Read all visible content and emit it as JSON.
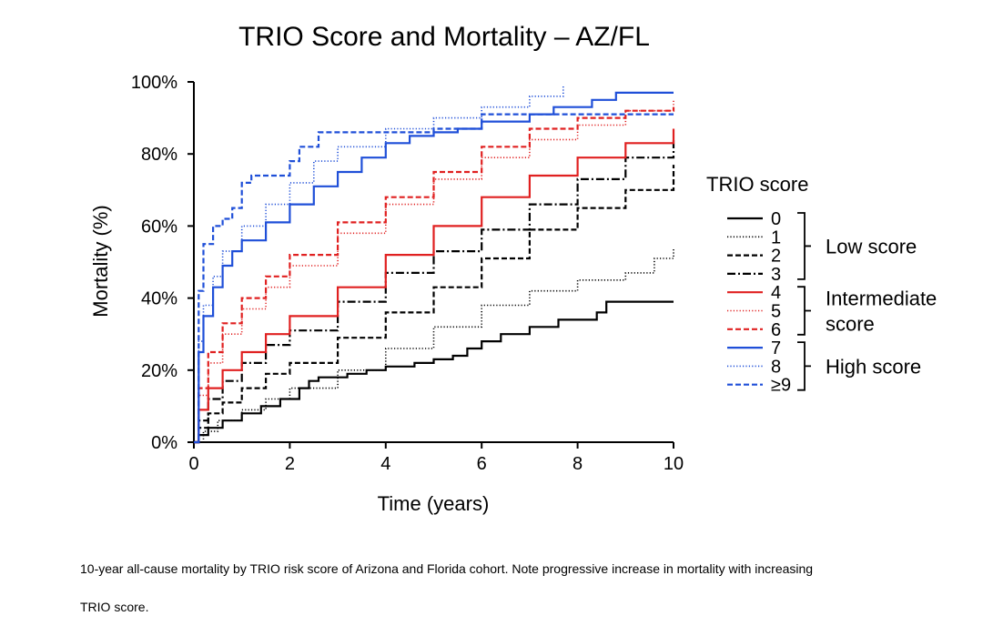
{
  "chart_data": {
    "type": "line",
    "title": "TRIO Score and Mortality – AZ/FL",
    "xlabel": "Time (years)",
    "ylabel": "Mortality (%)",
    "xlim": [
      0,
      10
    ],
    "ylim": [
      0,
      100
    ],
    "xticks": [
      0,
      2,
      4,
      6,
      8,
      10
    ],
    "xtick_labels": [
      "0",
      "2",
      "4",
      "6",
      "8",
      "10"
    ],
    "yticks": [
      0,
      20,
      40,
      60,
      80,
      100
    ],
    "ytick_labels": [
      "0%",
      "20%",
      "40%",
      "60%",
      "80%",
      "100%"
    ],
    "grid": false,
    "legend_title": "TRIO score",
    "legend_groups": [
      {
        "label_lines": [
          "Low score"
        ],
        "members": [
          "0",
          "1",
          "2",
          "3"
        ]
      },
      {
        "label_lines": [
          "Intermediate",
          "score"
        ],
        "members": [
          "4",
          "5",
          "6"
        ]
      },
      {
        "label_lines": [
          "High score"
        ],
        "members": [
          "7",
          "8",
          "≥9"
        ]
      }
    ],
    "series": [
      {
        "name": "0",
        "color": "#000000",
        "dash": "solid",
        "x": [
          0,
          0.1,
          0.3,
          0.6,
          1,
          1.4,
          1.8,
          2.2,
          2.4,
          2.6,
          2.8,
          3.2,
          3.6,
          4,
          4.6,
          5,
          5.4,
          5.7,
          6,
          6.4,
          7,
          7.6,
          8.4,
          8.6,
          10
        ],
        "y": [
          0,
          2,
          4,
          6,
          8,
          10,
          12,
          15,
          17,
          18,
          18,
          19,
          20,
          21,
          22,
          23,
          24,
          26,
          28,
          30,
          32,
          34,
          36,
          39,
          39
        ]
      },
      {
        "name": "1",
        "color": "#000000",
        "dash": "dotted",
        "x": [
          0,
          0.2,
          0.5,
          1,
          1.5,
          2,
          3,
          4,
          5,
          6,
          7,
          8,
          9,
          9.6,
          10
        ],
        "y": [
          0,
          3,
          6,
          9,
          12,
          15,
          20,
          26,
          32,
          38,
          42,
          45,
          47,
          51,
          54
        ]
      },
      {
        "name": "2",
        "color": "#000000",
        "dash": "dashed",
        "x": [
          0,
          0.1,
          0.3,
          0.6,
          1,
          1.5,
          2,
          3,
          4,
          5,
          6,
          7,
          8,
          9,
          10
        ],
        "y": [
          0,
          4,
          8,
          11,
          15,
          19,
          22,
          29,
          36,
          43,
          51,
          59,
          65,
          70,
          77
        ]
      },
      {
        "name": "3",
        "color": "#000000",
        "dash": "dashdot",
        "x": [
          0,
          0.1,
          0.3,
          0.6,
          1,
          1.5,
          2,
          3,
          4,
          5,
          6,
          7,
          8,
          9,
          10
        ],
        "y": [
          0,
          6,
          12,
          17,
          22,
          27,
          31,
          39,
          47,
          53,
          59,
          66,
          73,
          79,
          84
        ]
      },
      {
        "name": "4",
        "color": "#e02020",
        "dash": "solid",
        "x": [
          0,
          0.1,
          0.3,
          0.6,
          1,
          1.5,
          2,
          3,
          4,
          5,
          6,
          7,
          8,
          9,
          10
        ],
        "y": [
          0,
          9,
          15,
          20,
          25,
          30,
          35,
          43,
          52,
          60,
          68,
          74,
          79,
          83,
          87
        ]
      },
      {
        "name": "5",
        "color": "#e02020",
        "dash": "dotted",
        "x": [
          0,
          0.1,
          0.3,
          0.6,
          1,
          1.5,
          2,
          3,
          4,
          5,
          6,
          7,
          8,
          9,
          10
        ],
        "y": [
          0,
          13,
          22,
          30,
          37,
          43,
          49,
          58,
          66,
          73,
          79,
          84,
          88,
          92,
          95
        ]
      },
      {
        "name": "6",
        "color": "#e02020",
        "dash": "dashed",
        "x": [
          0,
          0.1,
          0.3,
          0.6,
          1,
          1.5,
          2,
          3,
          4,
          5,
          6,
          7,
          8,
          9,
          10
        ],
        "y": [
          0,
          15,
          25,
          33,
          40,
          46,
          52,
          61,
          68,
          75,
          82,
          87,
          90,
          92,
          93
        ]
      },
      {
        "name": "7",
        "color": "#1f4fd8",
        "dash": "solid",
        "x": [
          0,
          0.1,
          0.2,
          0.4,
          0.6,
          0.8,
          1,
          1.5,
          2,
          2.5,
          3,
          3.5,
          4,
          4.5,
          5,
          5.5,
          6,
          7,
          7.5,
          8.3,
          8.8,
          10
        ],
        "y": [
          0,
          25,
          35,
          43,
          49,
          53,
          56,
          61,
          66,
          71,
          75,
          79,
          83,
          85,
          86,
          87,
          89,
          91,
          93,
          95,
          97,
          97
        ]
      },
      {
        "name": "8",
        "color": "#1f4fd8",
        "dash": "dotted",
        "x": [
          0,
          0.1,
          0.2,
          0.4,
          0.6,
          1,
          1.5,
          2,
          2.5,
          3,
          4,
          5,
          6,
          7,
          7.7
        ],
        "y": [
          0,
          28,
          38,
          46,
          53,
          60,
          66,
          72,
          78,
          82,
          87,
          90,
          93,
          96,
          99
        ]
      },
      {
        "name": "≥9",
        "color": "#1f4fd8",
        "dash": "dashed",
        "x": [
          0,
          0.1,
          0.2,
          0.4,
          0.6,
          0.8,
          1,
          1.2,
          1.6,
          2,
          2.2,
          2.6,
          3,
          4,
          5,
          6,
          8,
          10
        ],
        "y": [
          0,
          42,
          55,
          60,
          62,
          65,
          72,
          74,
          74,
          78,
          82,
          86,
          86,
          86,
          87,
          91,
          91,
          91
        ]
      }
    ]
  },
  "caption_line1": "10-year all-cause mortality by TRIO risk score of Arizona and Florida cohort. Note progressive increase in mortality with increasing",
  "caption_line2": "TRIO score."
}
